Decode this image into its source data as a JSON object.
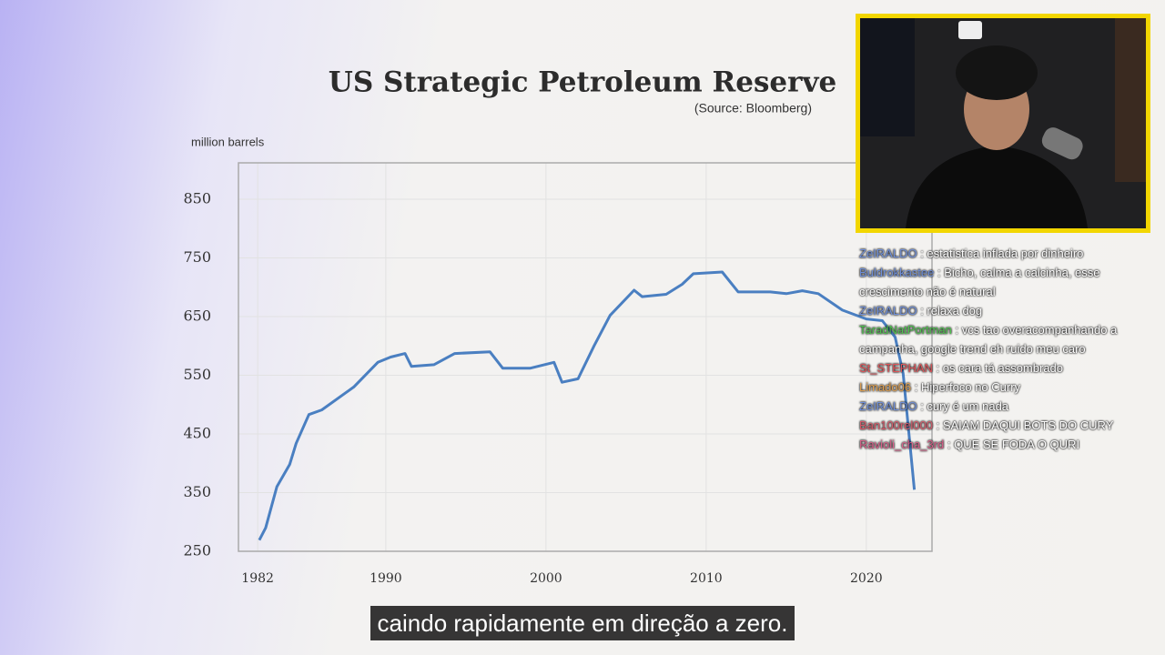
{
  "chart_data": {
    "type": "line",
    "title": "US Strategic Petroleum Reserve",
    "subtitle": "(Source: Bloomberg)",
    "y_label": "million barrels",
    "x": [
      1982.1,
      1982.5,
      1983.2,
      1984,
      1984.4,
      1985.2,
      1986,
      1988,
      1989.5,
      1990.3,
      1991.2,
      1991.6,
      1993,
      1994.3,
      1996.5,
      1997.3,
      1999,
      2000.5,
      2001,
      2002,
      2003,
      2004,
      2005.5,
      2006,
      2007.5,
      2008.5,
      2009.2,
      2011,
      2012,
      2014,
      2015,
      2016,
      2017,
      2018.5,
      2020,
      2021,
      2021.8,
      2022.3,
      2023
    ],
    "values": [
      269,
      290,
      360,
      398,
      434,
      483,
      491,
      530,
      572,
      581,
      587,
      565,
      568,
      587,
      590,
      562,
      562,
      572,
      538,
      544,
      600,
      652,
      695,
      684,
      688,
      705,
      723,
      726,
      692,
      692,
      689,
      694,
      689,
      661,
      646,
      643,
      615,
      553,
      355
    ],
    "color": "#4a7fc1",
    "xlim": [
      1980.8,
      2024.1
    ],
    "xticks": [
      1982,
      1990,
      2000,
      2010,
      2020
    ],
    "ylim": [
      250,
      912
    ],
    "yticks": [
      250,
      350,
      450,
      550,
      650,
      750,
      850
    ],
    "grid": true
  },
  "chat": [
    {
      "name": "ZeIRALDO",
      "color": "#6f8fd8",
      "text": ": estatistica inflada por dinheiro"
    },
    {
      "name": "Buldrokkastee",
      "color": "#6f8fd8",
      "text": ": Bicho, calma a calcinha, esse crescimento não é natural"
    },
    {
      "name": "ZeIRALDO",
      "color": "#6f8fd8",
      "text": ": relaxa dog"
    },
    {
      "name": "TaradNatPortman",
      "color": "#4fc34f",
      "text": ": vcs tao overacompanhando a campanha, google trend eh ruido meu caro"
    },
    {
      "name": "St_STEPHAN",
      "color": "#e0555a",
      "text": ": os cara tá assombrado"
    },
    {
      "name": "Limado06",
      "color": "#e0a050",
      "text": ": Hiperfoco no Curry"
    },
    {
      "name": "ZeIRALDO",
      "color": "#6f8fd8",
      "text": ": cury é um nada"
    },
    {
      "name": "Ban100rel000",
      "color": "#d85a6a",
      "text": ": SAIAM DAQUI BOTS DO CURY"
    },
    {
      "name": "Ravioli_cha_3rd",
      "color": "#d8608a",
      "text": ": QUE SE FODA O QURI"
    }
  ],
  "caption": "caindo rapidamente em direção a zero."
}
